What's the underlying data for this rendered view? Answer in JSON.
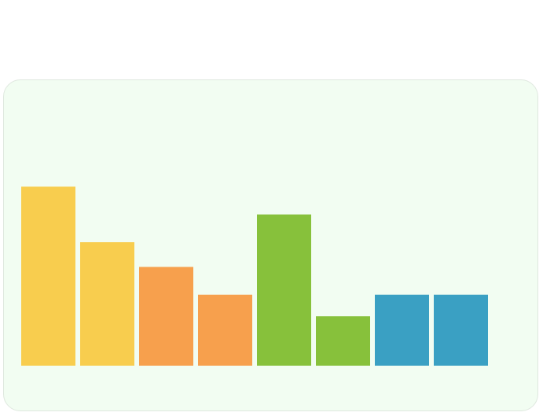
{
  "chart_data": {
    "type": "bar",
    "categories": [
      "",
      "",
      "",
      "",
      "",
      "",
      "",
      ""
    ],
    "values": [
      100,
      82,
      74,
      65,
      91,
      58,
      65,
      65
    ],
    "colors": [
      "#f8cd4e",
      "#f8cd4e",
      "#f7a04d",
      "#f7a04d",
      "#87c13b",
      "#87c13b",
      "#3aa0c3",
      "#3aa0c3"
    ],
    "title": "",
    "xlabel": "",
    "ylabel": "",
    "ylim": [
      42,
      135
    ],
    "grid": false,
    "legend": "none"
  },
  "colors": {
    "panel_background": "#f2fdf2",
    "panel_border": "#dfe8df"
  }
}
